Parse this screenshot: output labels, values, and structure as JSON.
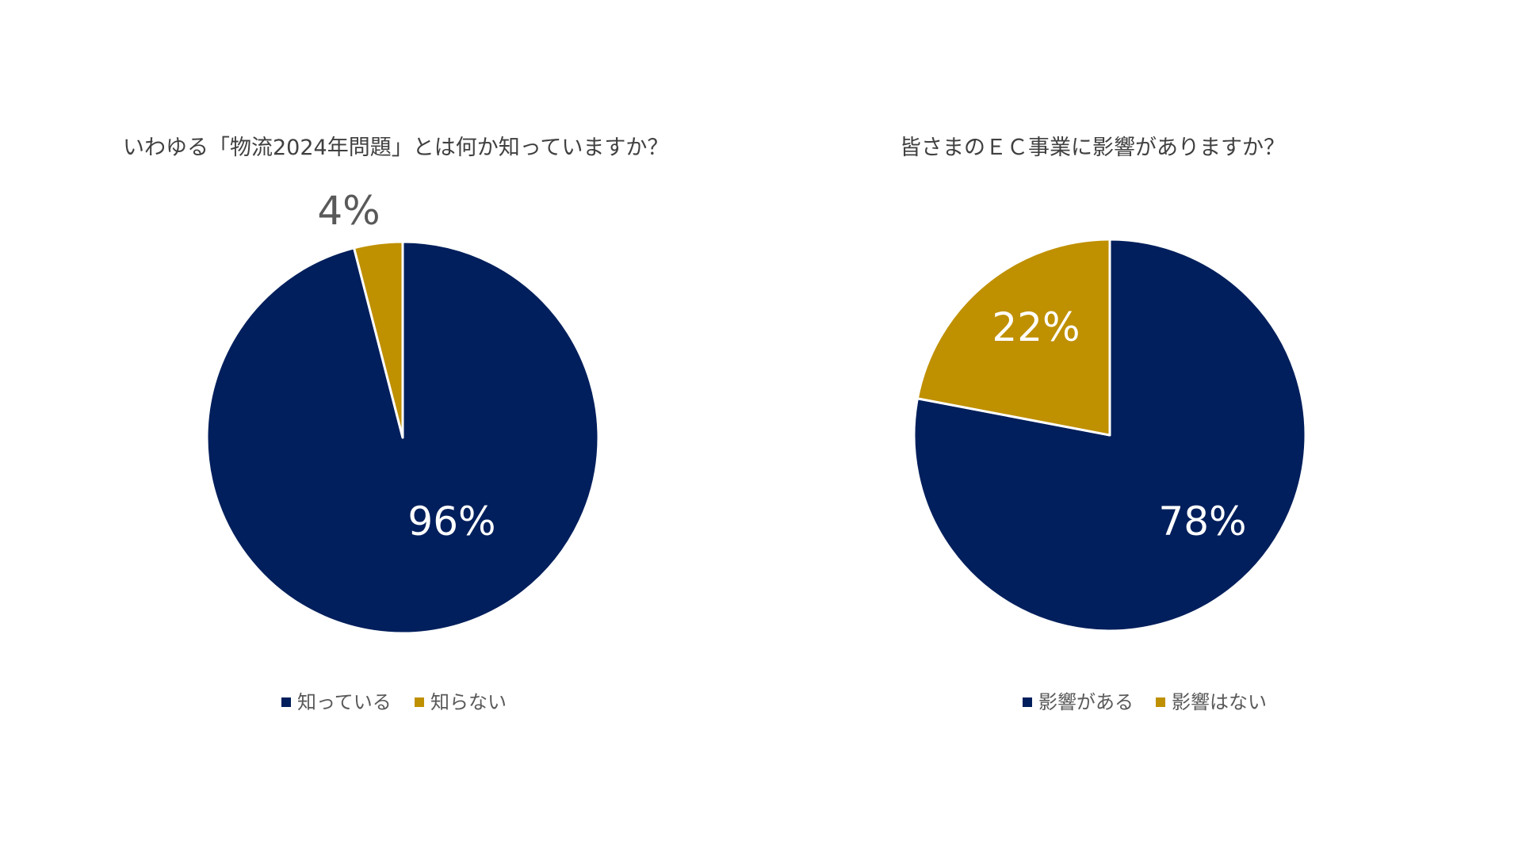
{
  "chart_data": [
    {
      "type": "pie",
      "title": "いわゆる「物流2024年問題」とは何か知っていますか？",
      "categories": [
        "知っている",
        "知らない"
      ],
      "values": [
        96,
        4
      ],
      "labels": [
        "96%",
        "4%"
      ],
      "colors": [
        "#001F5C",
        "#BF9000"
      ],
      "legend": "bottom"
    },
    {
      "type": "pie",
      "title": "皆さまのＥＣ事業に影響がありますか？",
      "categories": [
        "影響がある",
        "影響はない"
      ],
      "values": [
        78,
        22
      ],
      "labels": [
        "78%",
        "22%"
      ],
      "colors": [
        "#001F5C",
        "#BF9000"
      ],
      "legend": "bottom"
    }
  ]
}
